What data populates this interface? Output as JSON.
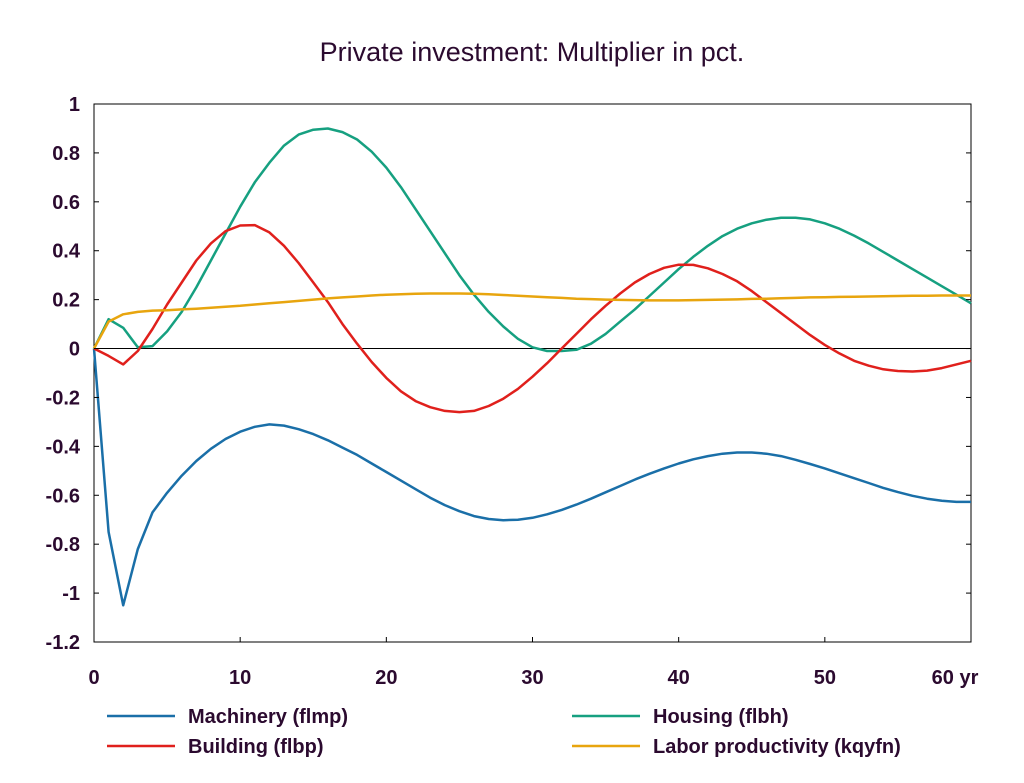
{
  "chart_data": {
    "type": "line",
    "title": "Private investment: Multiplier in pct.",
    "xlabel": "",
    "ylabel": "",
    "x_unit_label": "yr",
    "xlim": [
      0,
      60
    ],
    "ylim": [
      -1.2,
      1
    ],
    "x_ticks": [
      0,
      10,
      20,
      30,
      40,
      50,
      60
    ],
    "x_tick_labels": [
      "0",
      "10",
      "20",
      "30",
      "40",
      "50",
      "60 yr"
    ],
    "y_ticks": [
      1,
      0.8,
      0.6,
      0.4,
      0.2,
      0,
      -0.2,
      -0.4,
      -0.6,
      -0.8,
      -1,
      -1.2
    ],
    "y_tick_labels": [
      "1",
      "0.8",
      "0.6",
      "0.4",
      "0.2",
      "0",
      "-0.2",
      "-0.4",
      "-0.6",
      "-0.8",
      "-1",
      "-1.2"
    ],
    "grid": false,
    "zero_line": true,
    "legend_position": "bottom",
    "series": [
      {
        "name": "Machinery (flmp)",
        "color": "#1a6fa8",
        "x": [
          0,
          1,
          2,
          3,
          4,
          5,
          6,
          7,
          8,
          9,
          10,
          11,
          12,
          13,
          14,
          15,
          16,
          17,
          18,
          19,
          20,
          21,
          22,
          23,
          24,
          25,
          26,
          27,
          28,
          29,
          30,
          31,
          32,
          33,
          34,
          35,
          36,
          37,
          38,
          39,
          40,
          41,
          42,
          43,
          44,
          45,
          46,
          47,
          48,
          49,
          50,
          51,
          52,
          53,
          54,
          55,
          56,
          57,
          58,
          59,
          60
        ],
        "values": [
          0,
          -0.75,
          -1.05,
          -0.82,
          -0.67,
          -0.59,
          -0.52,
          -0.46,
          -0.41,
          -0.37,
          -0.34,
          -0.32,
          -0.31,
          -0.315,
          -0.33,
          -0.35,
          -0.375,
          -0.405,
          -0.435,
          -0.47,
          -0.505,
          -0.54,
          -0.575,
          -0.61,
          -0.64,
          -0.665,
          -0.685,
          -0.697,
          -0.702,
          -0.7,
          -0.692,
          -0.678,
          -0.66,
          -0.638,
          -0.614,
          -0.588,
          -0.562,
          -0.536,
          -0.512,
          -0.49,
          -0.47,
          -0.453,
          -0.44,
          -0.43,
          -0.425,
          -0.425,
          -0.43,
          -0.44,
          -0.455,
          -0.472,
          -0.49,
          -0.51,
          -0.53,
          -0.55,
          -0.57,
          -0.587,
          -0.602,
          -0.614,
          -0.622,
          -0.627,
          -0.627
        ]
      },
      {
        "name": "Housing (flbh)",
        "color": "#16a080",
        "x": [
          0,
          1,
          2,
          3,
          4,
          5,
          6,
          7,
          8,
          9,
          10,
          11,
          12,
          13,
          14,
          15,
          16,
          17,
          18,
          19,
          20,
          21,
          22,
          23,
          24,
          25,
          26,
          27,
          28,
          29,
          30,
          31,
          32,
          33,
          34,
          35,
          36,
          37,
          38,
          39,
          40,
          41,
          42,
          43,
          44,
          45,
          46,
          47,
          48,
          49,
          50,
          51,
          52,
          53,
          54,
          55,
          56,
          57,
          58,
          59,
          60
        ],
        "values": [
          0,
          0.12,
          0.085,
          0.005,
          0.01,
          0.07,
          0.15,
          0.25,
          0.36,
          0.47,
          0.58,
          0.68,
          0.76,
          0.83,
          0.875,
          0.895,
          0.9,
          0.885,
          0.855,
          0.805,
          0.74,
          0.66,
          0.57,
          0.48,
          0.39,
          0.3,
          0.22,
          0.15,
          0.09,
          0.04,
          0.005,
          -0.01,
          -0.01,
          -0.005,
          0.02,
          0.06,
          0.11,
          0.16,
          0.215,
          0.27,
          0.325,
          0.375,
          0.42,
          0.46,
          0.49,
          0.512,
          0.527,
          0.535,
          0.535,
          0.528,
          0.512,
          0.49,
          0.462,
          0.43,
          0.395,
          0.36,
          0.325,
          0.29,
          0.255,
          0.22,
          0.185
        ]
      },
      {
        "name": "Building (flbp)",
        "color": "#e0201c",
        "x": [
          0,
          1,
          2,
          3,
          4,
          5,
          6,
          7,
          8,
          9,
          10,
          11,
          12,
          13,
          14,
          15,
          16,
          17,
          18,
          19,
          20,
          21,
          22,
          23,
          24,
          25,
          26,
          27,
          28,
          29,
          30,
          31,
          32,
          33,
          34,
          35,
          36,
          37,
          38,
          39,
          40,
          41,
          42,
          43,
          44,
          45,
          46,
          47,
          48,
          49,
          50,
          51,
          52,
          53,
          54,
          55,
          56,
          57,
          58,
          59,
          60
        ],
        "values": [
          0,
          -0.03,
          -0.065,
          -0.01,
          0.08,
          0.18,
          0.27,
          0.36,
          0.43,
          0.48,
          0.503,
          0.505,
          0.475,
          0.42,
          0.35,
          0.27,
          0.19,
          0.1,
          0.02,
          -0.055,
          -0.12,
          -0.175,
          -0.215,
          -0.24,
          -0.255,
          -0.26,
          -0.255,
          -0.235,
          -0.205,
          -0.165,
          -0.115,
          -0.06,
          0,
          0.06,
          0.12,
          0.175,
          0.225,
          0.27,
          0.305,
          0.33,
          0.343,
          0.342,
          0.328,
          0.305,
          0.275,
          0.235,
          0.19,
          0.145,
          0.1,
          0.055,
          0.015,
          -0.02,
          -0.05,
          -0.07,
          -0.085,
          -0.092,
          -0.094,
          -0.09,
          -0.08,
          -0.065,
          -0.05
        ]
      },
      {
        "name": "Labor productivity (kqyfn)",
        "color": "#e8a50e",
        "x": [
          0,
          1,
          2,
          3,
          4,
          5,
          6,
          7,
          8,
          9,
          10,
          11,
          12,
          13,
          14,
          15,
          16,
          17,
          18,
          19,
          20,
          21,
          22,
          23,
          24,
          25,
          26,
          27,
          28,
          29,
          30,
          31,
          32,
          33,
          34,
          35,
          36,
          37,
          38,
          39,
          40,
          41,
          42,
          43,
          44,
          45,
          46,
          47,
          48,
          49,
          50,
          51,
          52,
          53,
          54,
          55,
          56,
          57,
          58,
          59,
          60
        ],
        "values": [
          0,
          0.11,
          0.14,
          0.15,
          0.155,
          0.157,
          0.16,
          0.163,
          0.167,
          0.171,
          0.175,
          0.18,
          0.185,
          0.19,
          0.195,
          0.2,
          0.205,
          0.209,
          0.213,
          0.217,
          0.22,
          0.222,
          0.224,
          0.225,
          0.225,
          0.225,
          0.224,
          0.222,
          0.219,
          0.216,
          0.213,
          0.21,
          0.207,
          0.204,
          0.202,
          0.2,
          0.199,
          0.198,
          0.197,
          0.197,
          0.197,
          0.198,
          0.199,
          0.2,
          0.201,
          0.203,
          0.204,
          0.206,
          0.207,
          0.209,
          0.21,
          0.211,
          0.212,
          0.213,
          0.214,
          0.215,
          0.216,
          0.216,
          0.217,
          0.217,
          0.217
        ]
      }
    ]
  }
}
